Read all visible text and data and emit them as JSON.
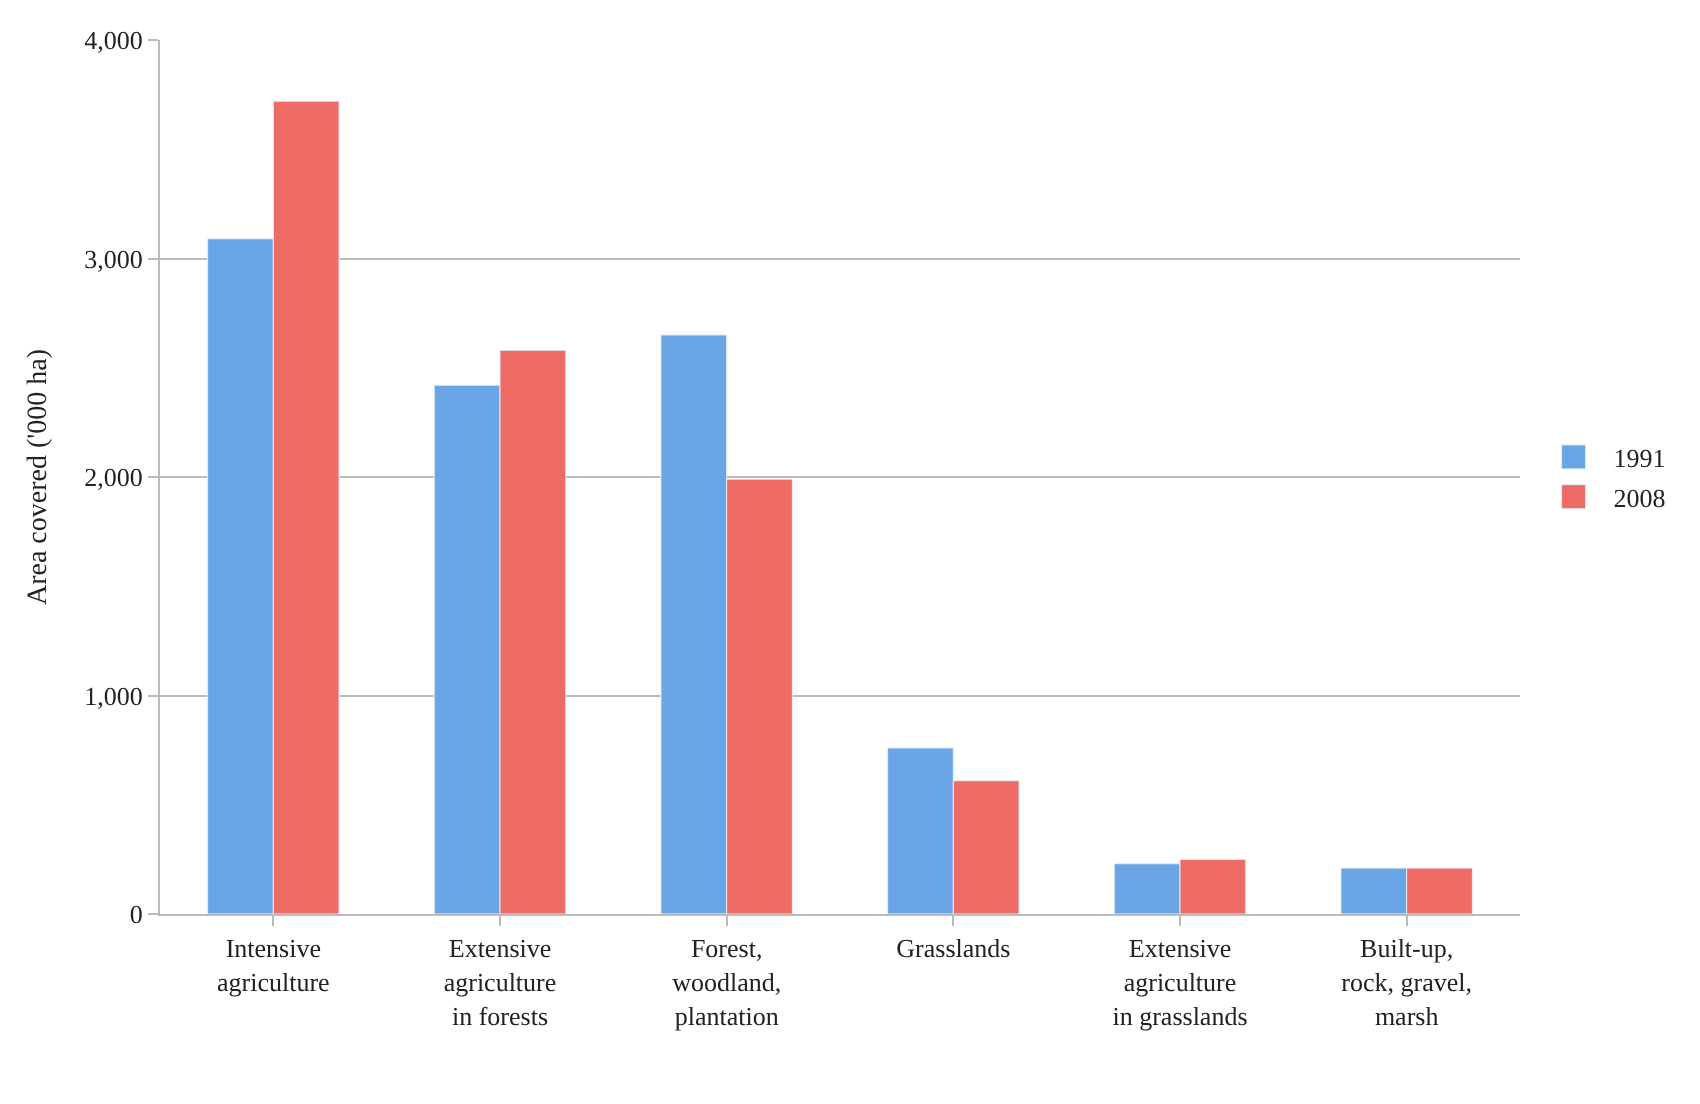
{
  "chart_data": {
    "type": "bar",
    "ylabel": "Area covered ('000 ha)",
    "categories": [
      "Intensive\nagriculture",
      "Extensive\nagriculture\nin forests",
      "Forest,\nwoodland,\nplantation",
      "Grasslands",
      "Extensive\nagriculture\nin grasslands",
      "Built-up,\nrock, gravel,\nmarsh"
    ],
    "series": [
      {
        "name": "1991",
        "color": "#6aa6e6",
        "values": [
          3090,
          2420,
          2650,
          760,
          230,
          210
        ]
      },
      {
        "name": "2008",
        "color": "#ee6b66",
        "values": [
          3720,
          2580,
          1990,
          610,
          250,
          210
        ]
      }
    ],
    "ylim": [
      0,
      4000
    ],
    "yticks": [
      {
        "value": 0,
        "label": "0"
      },
      {
        "value": 1000,
        "label": "1,000"
      },
      {
        "value": 2000,
        "label": "2,000"
      },
      {
        "value": 3000,
        "label": "3,000"
      },
      {
        "value": 4000,
        "label": "4,000"
      }
    ],
    "grid": "y",
    "legend": "right"
  }
}
